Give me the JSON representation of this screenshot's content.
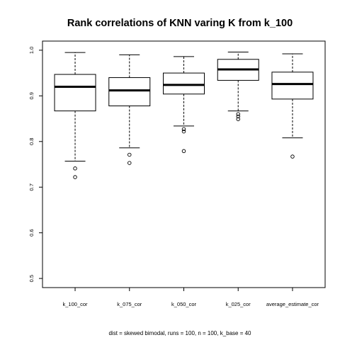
{
  "chart_data": {
    "type": "boxplot",
    "title": "Rank correlations of KNN varing K from k_100",
    "subtitle": "dist = skewed bimodal, runs = 100, n = 100, k_base = 40",
    "xlabel": "",
    "ylabel": "",
    "ylim": [
      0.48,
      1.02
    ],
    "yticks": [
      "0.5",
      "0.6",
      "0.7",
      "0.8",
      "0.9",
      "1.0"
    ],
    "grid": false,
    "categories": [
      "k_100_cor",
      "k_075_cor",
      "k_050_cor",
      "k_025_cor",
      "average_estimate_cor"
    ],
    "boxes": [
      {
        "name": "k_100_cor",
        "whisker_low": 0.757,
        "q1": 0.867,
        "median": 0.92,
        "q3": 0.947,
        "whisker_high": 0.995,
        "outliers": [
          0.741,
          0.722
        ]
      },
      {
        "name": "k_075_cor",
        "whisker_low": 0.786,
        "q1": 0.878,
        "median": 0.912,
        "q3": 0.94,
        "whisker_high": 0.99,
        "outliers": [
          0.771,
          0.753
        ]
      },
      {
        "name": "k_050_cor",
        "whisker_low": 0.834,
        "q1": 0.904,
        "median": 0.924,
        "q3": 0.95,
        "whisker_high": 0.986,
        "outliers": [
          0.827,
          0.822,
          0.779
        ]
      },
      {
        "name": "k_025_cor",
        "whisker_low": 0.867,
        "q1": 0.934,
        "median": 0.958,
        "q3": 0.98,
        "whisker_high": 0.996,
        "outliers": [
          0.86,
          0.855,
          0.849
        ]
      },
      {
        "name": "average_estimate_cor",
        "whisker_low": 0.808,
        "q1": 0.893,
        "median": 0.926,
        "q3": 0.952,
        "whisker_high": 0.992,
        "outliers": [
          0.767
        ]
      }
    ]
  }
}
